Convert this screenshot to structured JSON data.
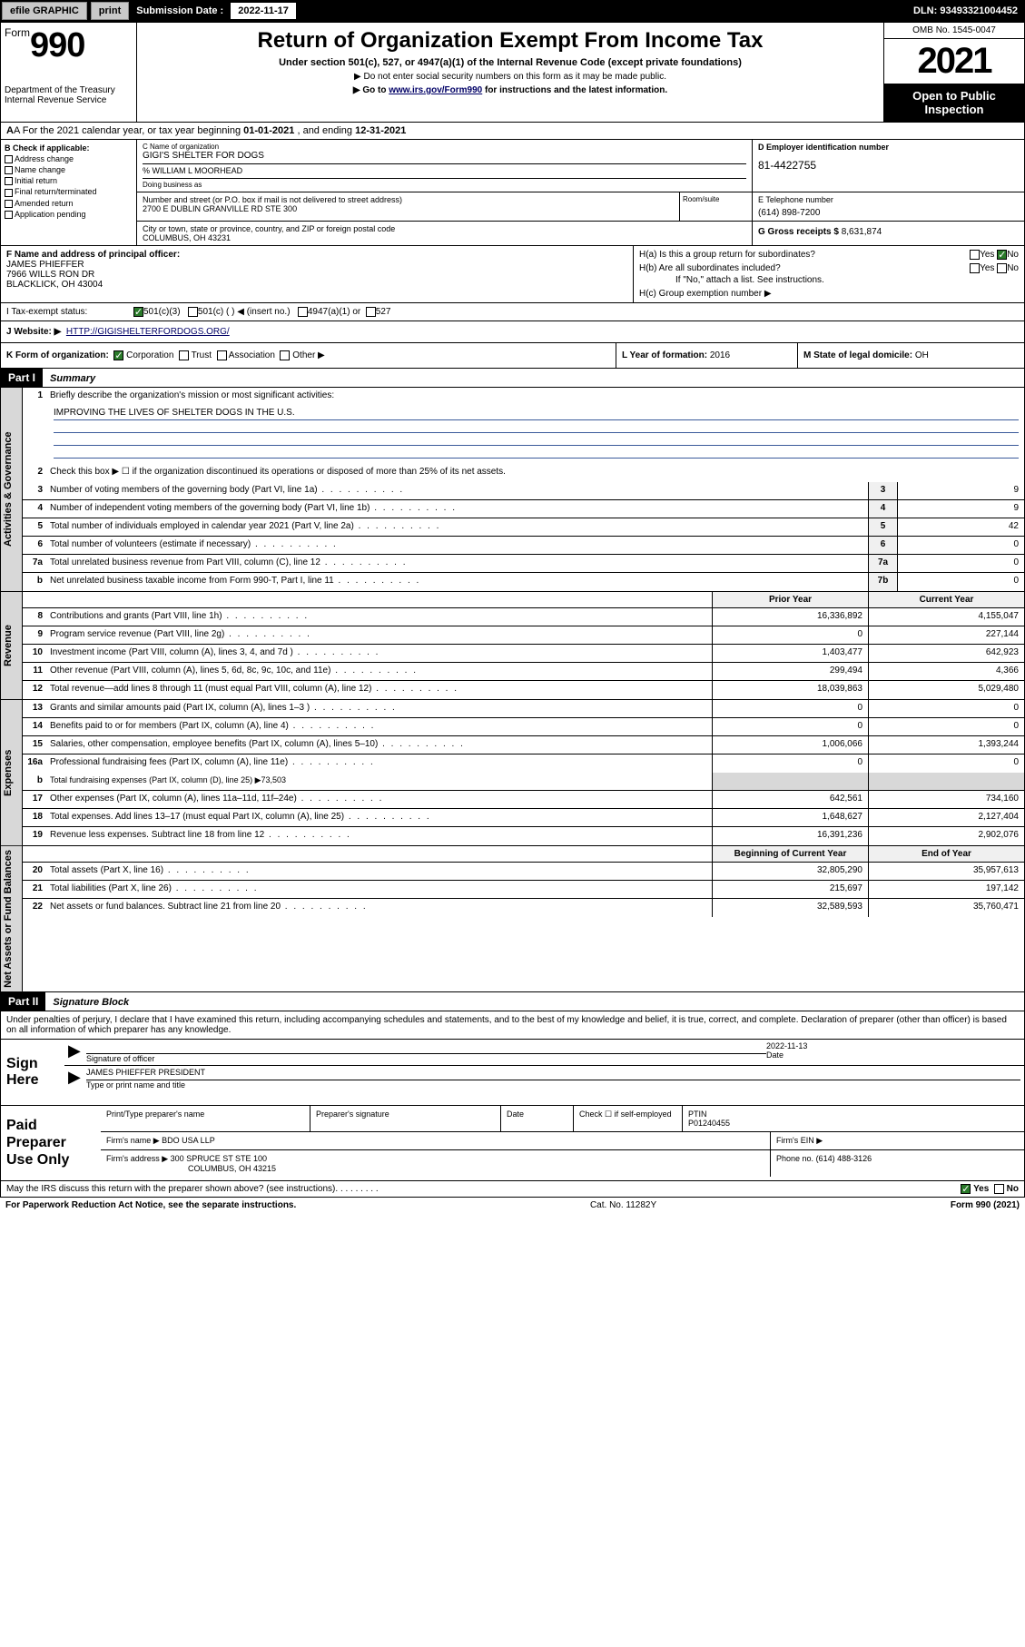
{
  "topbar": {
    "efile": "efile GRAPHIC",
    "print": "print",
    "sub_lbl": "Submission Date :",
    "sub_val": "2022-11-17",
    "dln_lbl": "DLN:",
    "dln_val": "93493321004452"
  },
  "header": {
    "form_word": "Form",
    "form_num": "990",
    "dept": "Department of the Treasury",
    "irs": "Internal Revenue Service",
    "title": "Return of Organization Exempt From Income Tax",
    "sub": "Under section 501(c), 527, or 4947(a)(1) of the Internal Revenue Code (except private foundations)",
    "note1": "▶ Do not enter social security numbers on this form as it may be made public.",
    "note2_pre": "▶ Go to ",
    "note2_link": "www.irs.gov/Form990",
    "note2_post": " for instructions and the latest information.",
    "omb": "OMB No. 1545-0047",
    "year": "2021",
    "inspection": "Open to Public Inspection"
  },
  "row_a": {
    "pre": "A For the 2021 calendar year, or tax year beginning ",
    "begin": "01-01-2021",
    "mid": "   , and ending ",
    "end": "12-31-2021"
  },
  "col_b": {
    "hdr": "B Check if applicable:",
    "items": [
      "Address change",
      "Name change",
      "Initial return",
      "Final return/terminated",
      "Amended return",
      "Application pending"
    ]
  },
  "col_c": {
    "name_lbl": "C Name of organization",
    "name_val": "GIGI'S SHELTER FOR DOGS",
    "care_lbl": "% WILLIAM L MOORHEAD",
    "dba_lbl": "Doing business as",
    "addr_lbl": "Number and street (or P.O. box if mail is not delivered to street address)",
    "addr_val": "2700 E DUBLIN GRANVILLE RD STE 300",
    "room_lbl": "Room/suite",
    "city_lbl": "City or town, state or province, country, and ZIP or foreign postal code",
    "city_val": "COLUMBUS, OH  43231"
  },
  "col_d": {
    "lbl": "D Employer identification number",
    "val": "81-4422755"
  },
  "col_e": {
    "lbl": "E Telephone number",
    "val": "(614) 898-7200"
  },
  "col_g": {
    "lbl": "G Gross receipts $",
    "val": "8,631,874"
  },
  "f": {
    "lbl": "F Name and address of principal officer:",
    "name": "JAMES PHIEFFER",
    "addr1": "7966 WILLS RON DR",
    "addr2": "BLACKLICK, OH  43004"
  },
  "h": {
    "a": "H(a)  Is this a group return for subordinates?",
    "b": "H(b)  Are all subordinates included?",
    "note": "If \"No,\" attach a list. See instructions.",
    "c": "H(c)  Group exemption number ▶",
    "yes": "Yes",
    "no": "No"
  },
  "i": {
    "lbl": "I   Tax-exempt status:",
    "o1": "501(c)(3)",
    "o2": "501(c) (  ) ◀ (insert no.)",
    "o3": "4947(a)(1) or",
    "o4": "527"
  },
  "j": {
    "lbl": "J   Website: ▶",
    "val": "HTTP://GIGISHELTERFORDOGS.ORG/"
  },
  "k": {
    "lbl": "K Form of organization:",
    "corp": "Corporation",
    "trust": "Trust",
    "assoc": "Association",
    "other": "Other ▶"
  },
  "l": {
    "lbl": "L Year of formation:",
    "val": "2016"
  },
  "m": {
    "lbl": "M State of legal domicile:",
    "val": "OH"
  },
  "part1": {
    "hdr": "Part I",
    "title": "Summary"
  },
  "mission": {
    "num": "1",
    "lbl": "Briefly describe the organization's mission or most significant activities:",
    "txt": "IMPROVING THE LIVES OF SHELTER DOGS IN THE U.S."
  },
  "line2": "Check this box ▶ ☐  if the organization discontinued its operations or disposed of more than 25% of its net assets.",
  "gov_lines": [
    {
      "n": "3",
      "t": "Number of voting members of the governing body (Part VI, line 1a)",
      "c": "3",
      "v": "9"
    },
    {
      "n": "4",
      "t": "Number of independent voting members of the governing body (Part VI, line 1b)",
      "c": "4",
      "v": "9"
    },
    {
      "n": "5",
      "t": "Total number of individuals employed in calendar year 2021 (Part V, line 2a)",
      "c": "5",
      "v": "42"
    },
    {
      "n": "6",
      "t": "Total number of volunteers (estimate if necessary)",
      "c": "6",
      "v": "0"
    },
    {
      "n": "7a",
      "t": "Total unrelated business revenue from Part VIII, column (C), line 12",
      "c": "7a",
      "v": "0"
    },
    {
      "n": "b",
      "t": "Net unrelated business taxable income from Form 990-T, Part I, line 11",
      "c": "7b",
      "v": "0"
    }
  ],
  "col_hdr": {
    "prior": "Prior Year",
    "current": "Current Year",
    "begin": "Beginning of Current Year",
    "end": "End of Year"
  },
  "rev_lines": [
    {
      "n": "8",
      "t": "Contributions and grants (Part VIII, line 1h)",
      "p": "16,336,892",
      "c": "4,155,047"
    },
    {
      "n": "9",
      "t": "Program service revenue (Part VIII, line 2g)",
      "p": "0",
      "c": "227,144"
    },
    {
      "n": "10",
      "t": "Investment income (Part VIII, column (A), lines 3, 4, and 7d )",
      "p": "1,403,477",
      "c": "642,923"
    },
    {
      "n": "11",
      "t": "Other revenue (Part VIII, column (A), lines 5, 6d, 8c, 9c, 10c, and 11e)",
      "p": "299,494",
      "c": "4,366"
    },
    {
      "n": "12",
      "t": "Total revenue—add lines 8 through 11 (must equal Part VIII, column (A), line 12)",
      "p": "18,039,863",
      "c": "5,029,480"
    }
  ],
  "exp_lines": [
    {
      "n": "13",
      "t": "Grants and similar amounts paid (Part IX, column (A), lines 1–3 )",
      "p": "0",
      "c": "0"
    },
    {
      "n": "14",
      "t": "Benefits paid to or for members (Part IX, column (A), line 4)",
      "p": "0",
      "c": "0"
    },
    {
      "n": "15",
      "t": "Salaries, other compensation, employee benefits (Part IX, column (A), lines 5–10)",
      "p": "1,006,066",
      "c": "1,393,244"
    },
    {
      "n": "16a",
      "t": "Professional fundraising fees (Part IX, column (A), line 11e)",
      "p": "0",
      "c": "0"
    }
  ],
  "line16b": {
    "n": "b",
    "t": "Total fundraising expenses (Part IX, column (D), line 25) ▶73,503"
  },
  "exp_lines2": [
    {
      "n": "17",
      "t": "Other expenses (Part IX, column (A), lines 11a–11d, 11f–24e)",
      "p": "642,561",
      "c": "734,160"
    },
    {
      "n": "18",
      "t": "Total expenses. Add lines 13–17 (must equal Part IX, column (A), line 25)",
      "p": "1,648,627",
      "c": "2,127,404"
    },
    {
      "n": "19",
      "t": "Revenue less expenses. Subtract line 18 from line 12",
      "p": "16,391,236",
      "c": "2,902,076"
    }
  ],
  "net_lines": [
    {
      "n": "20",
      "t": "Total assets (Part X, line 16)",
      "p": "32,805,290",
      "c": "35,957,613"
    },
    {
      "n": "21",
      "t": "Total liabilities (Part X, line 26)",
      "p": "215,697",
      "c": "197,142"
    },
    {
      "n": "22",
      "t": "Net assets or fund balances. Subtract line 21 from line 20",
      "p": "32,589,593",
      "c": "35,760,471"
    }
  ],
  "tab_labels": {
    "gov": "Activities & Governance",
    "rev": "Revenue",
    "exp": "Expenses",
    "net": "Net Assets or Fund Balances"
  },
  "part2": {
    "hdr": "Part II",
    "title": "Signature Block"
  },
  "sig_intro": "Under penalties of perjury, I declare that I have examined this return, including accompanying schedules and statements, and to the best of my knowledge and belief, it is true, correct, and complete. Declaration of preparer (other than officer) is based on all information of which preparer has any knowledge.",
  "sign": {
    "lbl": "Sign Here",
    "sig_lbl": "Signature of officer",
    "date_val": "2022-11-13",
    "date_lbl": "Date",
    "name": "JAMES PHIEFFER  PRESIDENT",
    "name_lbl": "Type or print name and title"
  },
  "prep": {
    "lbl": "Paid Preparer Use Only",
    "r1": {
      "name_lbl": "Print/Type preparer's name",
      "sig_lbl": "Preparer's signature",
      "date_lbl": "Date",
      "chk_lbl": "Check ☐ if self-employed",
      "ptin_lbl": "PTIN",
      "ptin_val": "P01240455"
    },
    "r2": {
      "lbl": "Firm's name    ▶",
      "val": "BDO USA LLP",
      "ein_lbl": "Firm's EIN ▶"
    },
    "r3": {
      "lbl": "Firm's address ▶",
      "val1": "300 SPRUCE ST STE 100",
      "val2": "COLUMBUS, OH  43215",
      "ph_lbl": "Phone no.",
      "ph_val": "(614) 488-3126"
    }
  },
  "foot": {
    "q": "May the IRS discuss this return with the preparer shown above? (see instructions)",
    "yes": "Yes",
    "no": "No",
    "pra": "For Paperwork Reduction Act Notice, see the separate instructions.",
    "cat": "Cat. No. 11282Y",
    "form": "Form 990 (2021)"
  }
}
